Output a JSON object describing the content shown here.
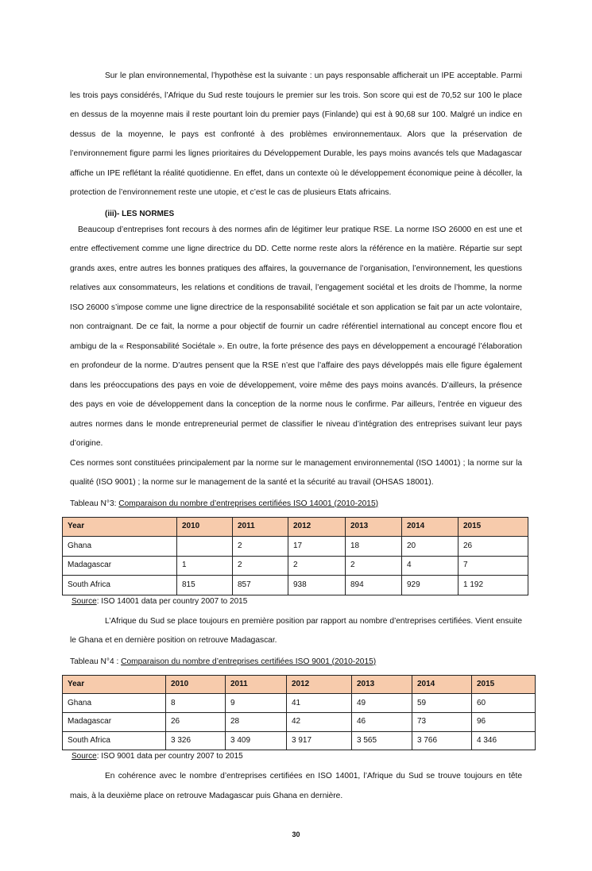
{
  "paragraphs": {
    "p1": "Sur le plan environnemental, l’hypothèse est la suivante : un pays responsable  afficherait un IPE acceptable. Parmi les trois pays considérés, l’Afrique du Sud reste  toujours  le premier sur les trois. Son score qui est de 70,52 sur 100 le place en  dessus  de  la  moyenne  mais il reste pourtant loin du premier  pays (Finlande) qui est à 90,68 sur 100. Malgré un indice en dessus de la moyenne, le pays est confronté à des problèmes environnementaux. Alors que la préservation de l’environnement figure parmi les lignes prioritaires du  Développement Durable, les pays moins avancés tels que Madagascar affiche un IPE  reflétant la réalité quotidienne. En effet, dans un contexte où le développement  économique peine à décoller, la protection de l’environnement reste une utopie, et c’est le cas de plusieurs  Etats africains.",
    "heading": "(iii)- LES NORMES",
    "p2": "Beaucoup d’entreprises font recours à des normes afin de légitimer leur pratique RSE. La  norme ISO 26000 en est une et entre effectivement comme une ligne directrice du DD. Cette norme reste alors la référence en la matière. Répartie sur sept grands axes, entre autres les bonnes pratiques des affaires, la gouvernance de l’organisation, l’environnement, les questions relatives aux consommateurs, les relations et conditions de travail, l’engagement sociétal et les droits de l’homme, la norme ISO 26000 s’impose comme une ligne directrice  de la responsabilité sociétale et son application se fait par un acte volontaire, non contraignant. De ce fait, la norme a pour objectif de fournir un cadre référentiel  international au concept encore flou et ambigu de la « Responsabilité Sociétale ». En outre, la forte présence  des  pays en développement a  encouragé  l’élaboration  en  profondeur de la  norme.  D’autres pensent que la RSE n’est que l’affaire des pays développés mais elle  figure  également dans les préoccupations des pays en voie de développement, voire même des pays  moins  avancés. D’ailleurs, la présence des pays en voie de développement dans la conception de la norme nous le confirme.  Par ailleurs, l’entrée en vigueur des autres normes dans le monde  entrepreneurial permet de classifier le niveau d’intégration des entreprises suivant leur  pays d’origine.",
    "p3": "Ces normes sont constituées principalement par la norme sur le management environnemental (ISO 14001) ; la norme sur la qualité (ISO 9001) ; la norme sur le management de la santé et la sécurité au travail (OHSAS 18001).",
    "p4": "L’Afrique du Sud se place toujours en première position par rapport au nombre d’entreprises certifiées. Vient ensuite le Ghana et en dernière position on retrouve Madagascar.",
    "p5": "En cohérence avec le nombre d’entreprises certifiées en ISO 14001, l’Afrique du Sud se trouve toujours en tête mais, à la deuxième place on retrouve  Madagascar puis Ghana en dernière."
  },
  "table3": {
    "label": "Tableau N°3: ",
    "title": "Comparaison du nombre d’entreprises certifiées ISO 14001 (2010-2015)",
    "header": [
      "Year",
      "2010",
      "2011",
      "2012",
      "2013",
      "2014",
      "2015"
    ],
    "rows": [
      [
        "Ghana",
        "",
        "2",
        "17",
        "18",
        "20",
        "26"
      ],
      [
        "Madagascar",
        "1",
        "2",
        "2",
        "2",
        "4",
        "7"
      ],
      [
        "South Africa",
        "815",
        "857",
        "938",
        "894",
        "929",
        "1 192"
      ]
    ],
    "source_label": "Source",
    "source_text": ": ISO 14001 data per country 2007 to 2015"
  },
  "table4": {
    "label": "Tableau N°4 : ",
    "title": "Comparaison du nombre d’entreprises certifiées ISO 9001 (2010-2015)",
    "header": [
      "Year",
      "2010",
      "2011",
      "2012",
      "2013",
      "2014",
      "2015"
    ],
    "rows": [
      [
        "Ghana",
        "8",
        "9",
        "41",
        "49",
        "59",
        "60"
      ],
      [
        "Madagascar",
        "26",
        "28",
        "42",
        "46",
        "73",
        "96"
      ],
      [
        "South Africa",
        "3 326",
        "3 409",
        "3 917",
        "3 565",
        "3 766",
        "4 346"
      ]
    ],
    "source_label": "Source",
    "source_text": ": ISO 9001 data per country 2007 to 2015"
  },
  "header_color": "#f7cbac",
  "page_number": "30"
}
